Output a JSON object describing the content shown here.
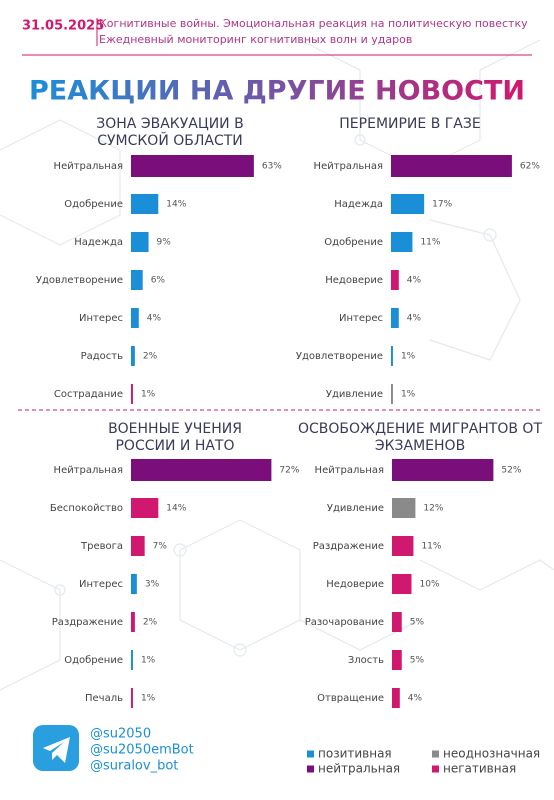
{
  "header": {
    "date": "31.05.2025",
    "subtitle_lines": [
      "Когнитивные войны. Эмоциональная реакция на политическую повестку",
      "Ежедневный мониторинг когнитивных волн и ударов"
    ],
    "title": "РЕАКЦИИ НА ДРУГИЕ НОВОСТИ"
  },
  "chart_data": [
    {
      "type": "bar",
      "orientation": "horizontal",
      "title": "ЗОНА ЭВАКУАЦИИ В СУМСКОЙ ОБЛАСТИ",
      "categories": [
        "Нейтральная",
        "Одобрение",
        "Надежда",
        "Удовлетворение",
        "Интерес",
        "Радость",
        "Сострадание"
      ],
      "values": [
        63,
        14,
        9,
        6,
        4,
        2,
        1
      ],
      "value_labels": [
        "63%",
        "14%",
        "9%",
        "6%",
        "4%",
        "2%",
        "1%"
      ],
      "colors": [
        "#7a0f7c",
        "#1a8fd8",
        "#1a8fd8",
        "#1a8fd8",
        "#1a8fd8",
        "#1a8fd8",
        "#d0186e"
      ]
    },
    {
      "type": "bar",
      "orientation": "horizontal",
      "title": "ПЕРЕМИРИЕ В ГАЗЕ",
      "categories": [
        "Нейтральная",
        "Надежда",
        "Одобрение",
        "Недоверие",
        "Интерес",
        "Удовлетворение",
        "Удивление"
      ],
      "values": [
        62,
        17,
        11,
        4,
        4,
        1,
        1
      ],
      "value_labels": [
        "62%",
        "17%",
        "11%",
        "4%",
        "4%",
        "1%",
        "1%"
      ],
      "colors": [
        "#7a0f7c",
        "#1a8fd8",
        "#1a8fd8",
        "#d0186e",
        "#1a8fd8",
        "#1a8fd8",
        "#8a8a8a"
      ]
    },
    {
      "type": "bar",
      "orientation": "horizontal",
      "title": "ВОЕННЫЕ УЧЕНИЯ РОССИИ И НАТО",
      "categories": [
        "Нейтральная",
        "Беспокойство",
        "Тревога",
        "Интерес",
        "Раздражение",
        "Одобрение",
        "Печаль"
      ],
      "values": [
        72,
        14,
        7,
        3,
        2,
        1,
        1
      ],
      "value_labels": [
        "72%",
        "14%",
        "7%",
        "3%",
        "2%",
        "1%",
        "1%"
      ],
      "colors": [
        "#7a0f7c",
        "#d0186e",
        "#d0186e",
        "#1a8fd8",
        "#d0186e",
        "#1a8fd8",
        "#d0186e"
      ]
    },
    {
      "type": "bar",
      "orientation": "horizontal",
      "title": "ОСВОБОЖДЕНИЕ МИГРАНТОВ ОТ ЭКЗАМЕНОВ",
      "categories": [
        "Нейтральная",
        "Удивление",
        "Раздражение",
        "Недоверие",
        "Разочарование",
        "Злость",
        "Отвращение"
      ],
      "values": [
        52,
        12,
        11,
        10,
        5,
        5,
        4
      ],
      "value_labels": [
        "52%",
        "12%",
        "11%",
        "10%",
        "5%",
        "5%",
        "4%"
      ],
      "colors": [
        "#7a0f7c",
        "#8a8a8a",
        "#d0186e",
        "#d0186e",
        "#d0186e",
        "#d0186e",
        "#d0186e"
      ]
    }
  ],
  "legend": [
    {
      "name": "позитивная",
      "color": "#1a8fd8"
    },
    {
      "name": "неоднозначная",
      "color": "#8a8a8a"
    },
    {
      "name": "нейтральная",
      "color": "#7a0f7c"
    },
    {
      "name": "негативная",
      "color": "#d0186e"
    }
  ],
  "footer": {
    "handles": [
      "@su2050",
      "@su2050emBot",
      "@suralov_bot"
    ]
  }
}
